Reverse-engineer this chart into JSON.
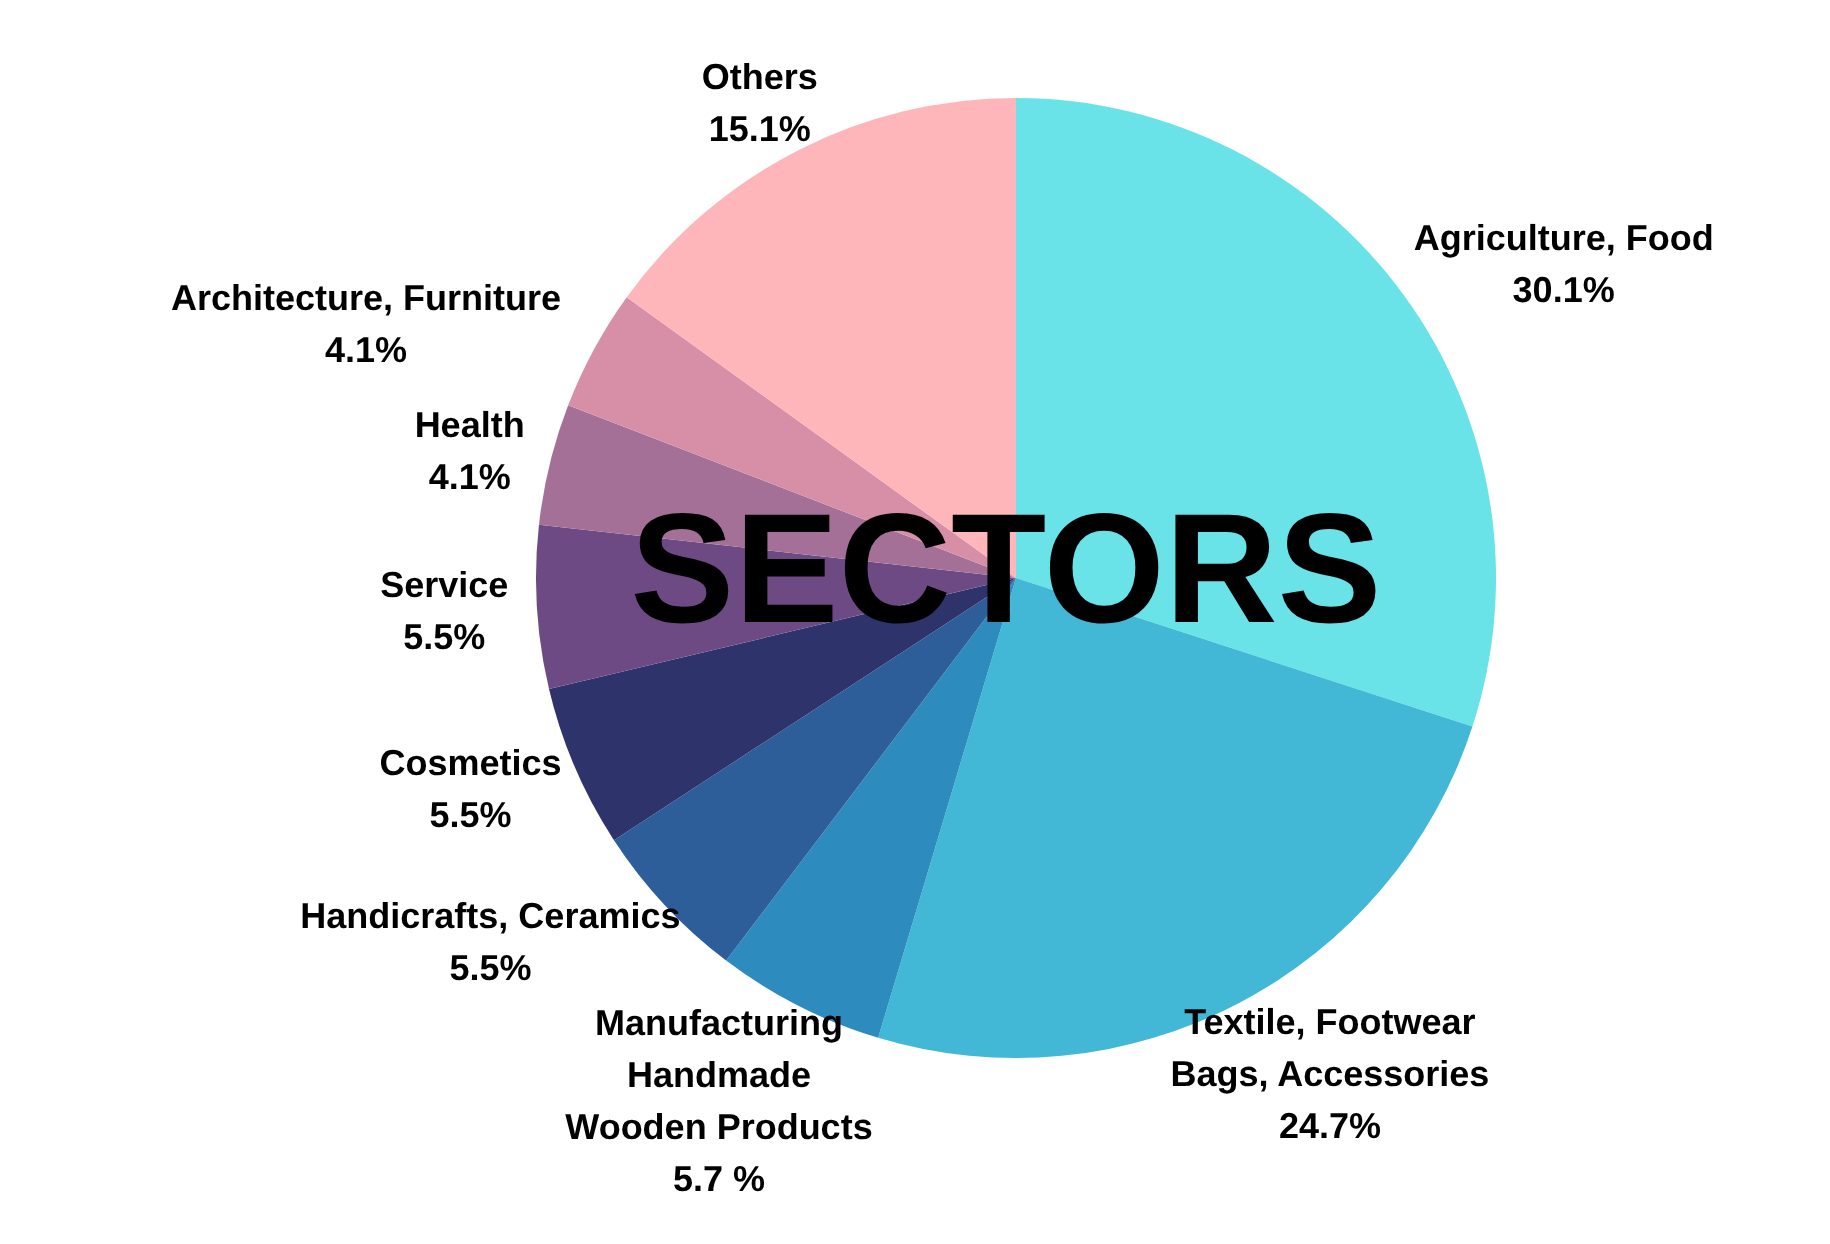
{
  "chart_data": {
    "type": "pie",
    "title": "SECTORS",
    "categories": [
      "Agriculture, Food",
      "Textile, Footwear\nBags, Accessories",
      "Manufacturing\nHandmade\nWooden Products",
      "Handicrafts, Ceramics",
      "Cosmetics",
      "Service",
      "Health",
      "Architecture, Furniture",
      "Others"
    ],
    "values": [
      30.1,
      24.7,
      5.7,
      5.5,
      5.5,
      5.5,
      4.1,
      4.1,
      15.1
    ],
    "value_labels": [
      "30.1%",
      "24.7%",
      "5.7 %",
      "5.5%",
      "5.5%",
      "5.5%",
      "4.1%",
      "4.1%",
      "15.1%"
    ],
    "colors": [
      "#6ae3e8",
      "#42b8d6",
      "#2e8bbd",
      "#2e5e99",
      "#2f336b",
      "#6e4a85",
      "#a57098",
      "#d78fa8",
      "#ffb6bb"
    ],
    "legend": false
  }
}
